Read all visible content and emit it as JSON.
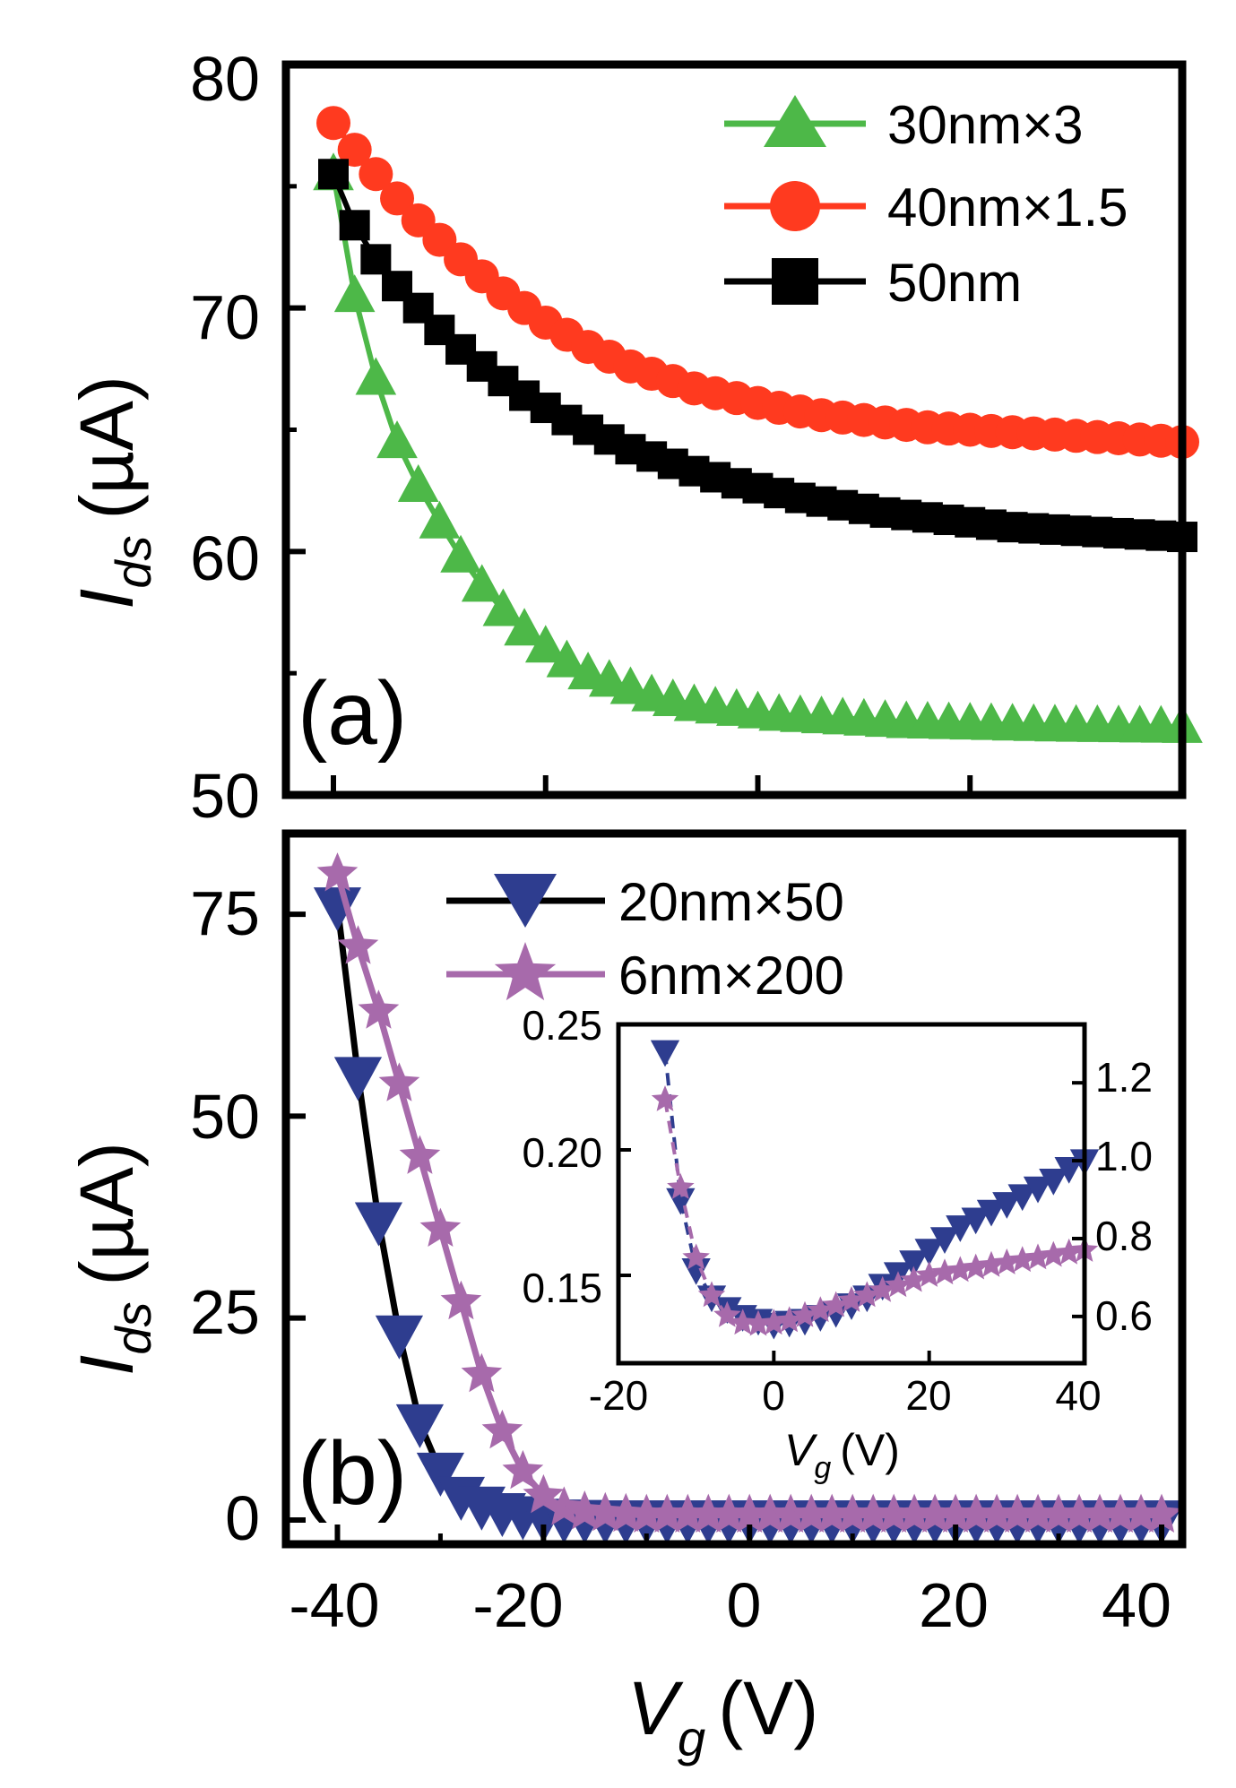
{
  "chart_data": [
    {
      "panel": "(a)",
      "type": "line",
      "xlabel": "",
      "ylabel_main": "I",
      "ylabel_sub": "ds",
      "ylabel_unit": "(µA)",
      "xlim": [
        -40,
        40
      ],
      "ylim": [
        50,
        80
      ],
      "yticks": [
        "50",
        "60",
        "70",
        "80"
      ],
      "legend_position": "top-right",
      "series": [
        {
          "name": "30nm×3",
          "color": "#4db848",
          "marker": "triangle-up",
          "line_color": "#4db848",
          "x": [
            -40,
            -38,
            -36,
            -34,
            -32,
            -30,
            -28,
            -26,
            -24,
            -22,
            -20,
            -18,
            -16,
            -14,
            -12,
            -10,
            -8,
            -6,
            -4,
            -2,
            0,
            2,
            4,
            6,
            8,
            10,
            12,
            14,
            16,
            18,
            20,
            22,
            24,
            26,
            28,
            30,
            32,
            34,
            36,
            38,
            40
          ],
          "values": [
            75.5,
            70.5,
            67.1,
            64.5,
            62.7,
            61.2,
            59.8,
            58.6,
            57.6,
            56.8,
            56.1,
            55.5,
            55.0,
            54.7,
            54.4,
            54.1,
            53.9,
            53.7,
            53.6,
            53.5,
            53.4,
            53.3,
            53.25,
            53.2,
            53.15,
            53.1,
            53.05,
            53.0,
            52.98,
            52.96,
            52.94,
            52.92,
            52.9,
            52.88,
            52.86,
            52.85,
            52.84,
            52.83,
            52.82,
            52.81,
            52.8
          ]
        },
        {
          "name": "40nm×1.5",
          "color": "#ff3a1f",
          "marker": "circle",
          "line_color": "#ff3a1f",
          "x": [
            -40,
            -38,
            -36,
            -34,
            -32,
            -30,
            -28,
            -26,
            -24,
            -22,
            -20,
            -18,
            -16,
            -14,
            -12,
            -10,
            -8,
            -6,
            -4,
            -2,
            0,
            2,
            4,
            6,
            8,
            10,
            12,
            14,
            16,
            18,
            20,
            22,
            24,
            26,
            28,
            30,
            32,
            34,
            36,
            38,
            40
          ],
          "values": [
            77.6,
            76.5,
            75.5,
            74.5,
            73.6,
            72.8,
            72.0,
            71.3,
            70.6,
            70.0,
            69.4,
            68.9,
            68.4,
            68.0,
            67.6,
            67.3,
            67.0,
            66.7,
            66.5,
            66.3,
            66.1,
            65.9,
            65.75,
            65.6,
            65.5,
            65.4,
            65.3,
            65.2,
            65.1,
            65.05,
            65.0,
            64.95,
            64.9,
            64.85,
            64.8,
            64.75,
            64.7,
            64.65,
            64.6,
            64.55,
            64.5
          ]
        },
        {
          "name": "50nm",
          "color": "#000000",
          "marker": "square",
          "line_color": "#000000",
          "x": [
            -40,
            -38,
            -36,
            -34,
            -32,
            -30,
            -28,
            -26,
            -24,
            -22,
            -20,
            -18,
            -16,
            -14,
            -12,
            -10,
            -8,
            -6,
            -4,
            -2,
            0,
            2,
            4,
            6,
            8,
            10,
            12,
            14,
            16,
            18,
            20,
            22,
            24,
            26,
            28,
            30,
            32,
            34,
            36,
            38,
            40
          ],
          "values": [
            75.5,
            73.4,
            72.0,
            70.9,
            70.0,
            69.1,
            68.3,
            67.6,
            67.0,
            66.4,
            65.9,
            65.4,
            65.0,
            64.6,
            64.2,
            63.9,
            63.6,
            63.3,
            63.05,
            62.8,
            62.6,
            62.4,
            62.2,
            62.05,
            61.9,
            61.75,
            61.6,
            61.5,
            61.4,
            61.3,
            61.2,
            61.1,
            61.0,
            60.95,
            60.9,
            60.85,
            60.8,
            60.75,
            60.7,
            60.65,
            60.6
          ]
        }
      ]
    },
    {
      "panel": "(b)",
      "type": "line",
      "xlabel_main": "V",
      "xlabel_sub": "g",
      "xlabel_unit": "(V)",
      "ylabel_main": "I",
      "ylabel_sub": "ds",
      "ylabel_unit": "(µA)",
      "xlim": [
        -45,
        42
      ],
      "ylim": [
        -3,
        85
      ],
      "xticks": [
        "-40",
        "-20",
        "0",
        "20",
        "40"
      ],
      "yticks": [
        "0",
        "25",
        "50",
        "75"
      ],
      "legend_position": "top-center",
      "series": [
        {
          "name": "20nm×50",
          "color": "#2e3d8f",
          "marker": "triangle-down",
          "line_color": "#000000",
          "x": [
            -40,
            -38,
            -36,
            -34,
            -32,
            -30,
            -28,
            -26,
            -24,
            -22,
            -20,
            -18,
            -16,
            -14,
            -12,
            -10,
            -8,
            -6,
            -4,
            -2,
            0,
            2,
            4,
            6,
            8,
            10,
            12,
            14,
            16,
            18,
            20,
            22,
            24,
            26,
            28,
            30,
            32,
            34,
            36,
            38,
            40
          ],
          "values": [
            76,
            55,
            37,
            23,
            12,
            6,
            3,
            1.8,
            1.0,
            0.6,
            0.3,
            0.2,
            0.15,
            0.1,
            0.1,
            0.1,
            0.1,
            0.1,
            0.1,
            0.1,
            0.1,
            0.1,
            0.1,
            0.1,
            0.1,
            0.1,
            0.1,
            0.1,
            0.1,
            0.1,
            0.1,
            0.1,
            0.1,
            0.1,
            0.1,
            0.1,
            0.1,
            0.1,
            0.1,
            0.1,
            0.1
          ]
        },
        {
          "name": "6nm×200",
          "color": "#a76aab",
          "marker": "star",
          "line_color": "#a76aab",
          "x": [
            -40,
            -38,
            -36,
            -34,
            -32,
            -30,
            -28,
            -26,
            -24,
            -22,
            -20,
            -18,
            -16,
            -14,
            -12,
            -10,
            -8,
            -6,
            -4,
            -2,
            0,
            2,
            4,
            6,
            8,
            10,
            12,
            14,
            16,
            18,
            20,
            22,
            24,
            26,
            28,
            30,
            32,
            34,
            36,
            38,
            40
          ],
          "values": [
            80,
            71,
            63,
            54,
            45,
            36,
            27,
            18,
            11,
            6,
            3,
            1.5,
            1.0,
            0.8,
            0.7,
            0.6,
            0.6,
            0.6,
            0.6,
            0.6,
            0.6,
            0.6,
            0.6,
            0.6,
            0.6,
            0.6,
            0.6,
            0.6,
            0.6,
            0.6,
            0.6,
            0.6,
            0.6,
            0.6,
            0.6,
            0.6,
            0.6,
            0.6,
            0.6,
            0.6,
            0.6
          ]
        }
      ]
    },
    {
      "panel": "(b) inset",
      "type": "line",
      "xlabel_main": "V",
      "xlabel_sub": "g",
      "xlabel_unit": "(V)",
      "xlim": [
        -20,
        40
      ],
      "ylim_left": [
        0.115,
        0.25
      ],
      "ylim_right": [
        0.48,
        1.35
      ],
      "xticks": [
        "-20",
        "0",
        "20",
        "40"
      ],
      "yticks_left": [
        "0.15",
        "0.20",
        "0.25"
      ],
      "yticks_right": [
        "0.6",
        "0.8",
        "1.0",
        "1.2"
      ],
      "series": [
        {
          "name": "20nm×50",
          "axis": "right",
          "color": "#2e3d8f",
          "marker": "triangle-down",
          "x": [
            -14,
            -12,
            -10,
            -8,
            -6,
            -4,
            -2,
            0,
            2,
            4,
            6,
            8,
            10,
            12,
            14,
            16,
            18,
            20,
            22,
            24,
            26,
            28,
            30,
            32,
            34,
            36,
            38,
            40
          ],
          "values": [
            1.28,
            0.9,
            0.72,
            0.65,
            0.62,
            0.6,
            0.59,
            0.58,
            0.585,
            0.59,
            0.6,
            0.61,
            0.63,
            0.65,
            0.68,
            0.71,
            0.74,
            0.77,
            0.8,
            0.83,
            0.85,
            0.87,
            0.89,
            0.91,
            0.93,
            0.95,
            0.98,
            1.0
          ]
        },
        {
          "name": "6nm×200",
          "axis": "left",
          "color": "#a76aab",
          "marker": "star",
          "x": [
            -14,
            -12,
            -10,
            -8,
            -6,
            -4,
            -2,
            0,
            2,
            4,
            6,
            8,
            10,
            12,
            14,
            16,
            18,
            20,
            22,
            24,
            26,
            28,
            30,
            32,
            34,
            36,
            38,
            40
          ],
          "values": [
            0.22,
            0.185,
            0.157,
            0.142,
            0.134,
            0.131,
            0.1305,
            0.131,
            0.132,
            0.134,
            0.136,
            0.138,
            0.14,
            0.142,
            0.144,
            0.146,
            0.148,
            0.15,
            0.151,
            0.152,
            0.153,
            0.154,
            0.155,
            0.156,
            0.157,
            0.158,
            0.159,
            0.16
          ]
        }
      ]
    }
  ]
}
